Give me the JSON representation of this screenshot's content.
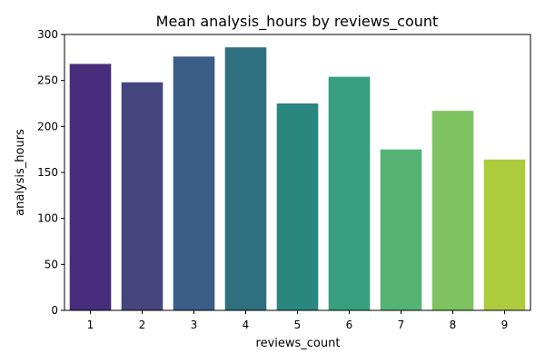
{
  "chart_data": {
    "type": "bar",
    "title": "Mean analysis_hours by reviews_count",
    "xlabel": "reviews_count",
    "ylabel": "analysis_hours",
    "categories": [
      "1",
      "2",
      "3",
      "4",
      "5",
      "6",
      "7",
      "8",
      "9"
    ],
    "values": [
      268,
      248,
      276,
      286,
      225,
      254,
      175,
      217,
      164
    ],
    "ylim": [
      0,
      300
    ],
    "yticks": [
      0,
      50,
      100,
      150,
      200,
      250,
      300
    ],
    "colors": [
      "#472d7b",
      "#46467e",
      "#3b5d88",
      "#2f6f7e",
      "#29877f",
      "#36a07e",
      "#54b373",
      "#7ec35f",
      "#aecb3e"
    ],
    "grid": false,
    "legend": "none"
  }
}
